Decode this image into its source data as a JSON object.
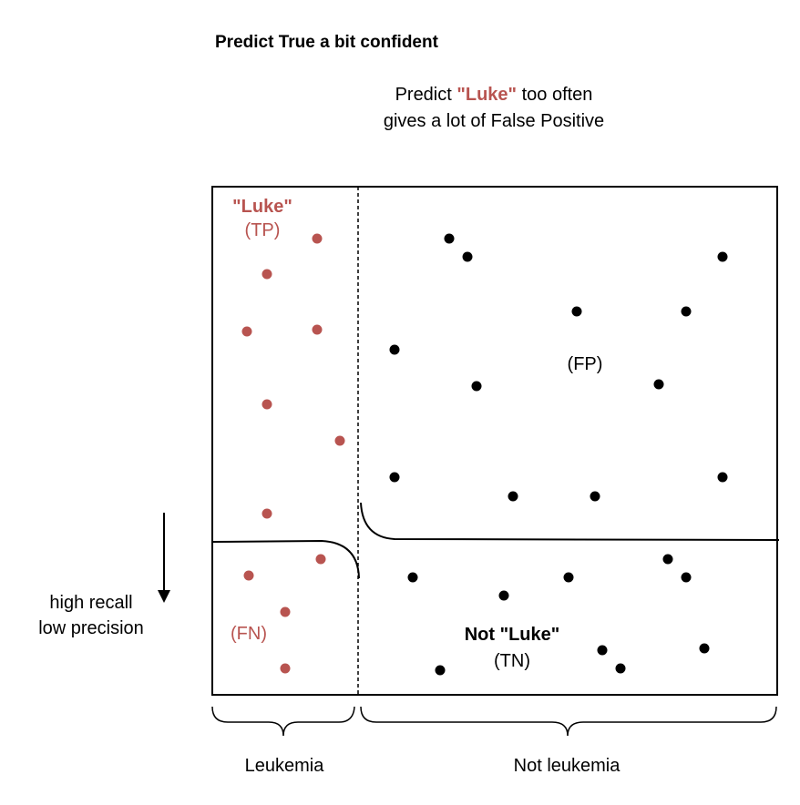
{
  "title": "Predict True a bit confident",
  "caption": {
    "line1_prefix": "Predict ",
    "line1_highlight": "\"Luke\"",
    "line1_suffix": " too often",
    "line2": "gives a lot of False Positive"
  },
  "quadrants": {
    "tp": {
      "name": "\"Luke\"",
      "abbr": "(TP)"
    },
    "fp": {
      "abbr": "(FP)"
    },
    "fn": {
      "abbr": "(FN)"
    },
    "tn": {
      "name": "Not \"Luke\"",
      "abbr": "(TN)"
    }
  },
  "side_note": {
    "line1": "high recall",
    "line2": "low precision"
  },
  "groups": {
    "left": "Leukemia",
    "right": "Not leukemia"
  },
  "colors": {
    "positive": "#b85450",
    "negative": "#000000",
    "line": "#000000"
  }
}
